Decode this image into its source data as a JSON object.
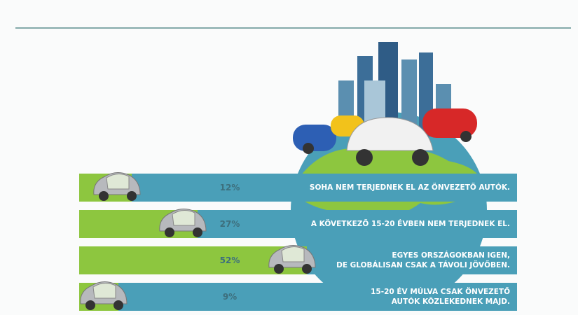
{
  "chart_data": {
    "type": "bar",
    "categories": [
      "SOHA NEM TERJEDNEK EL AZ ÖNVEZETŐ AUTÓK.",
      "A KÖVETKEZŐ 15-20 ÉVBEN NEM TERJEDNEK EL.",
      "EGYES ORSZÁGOKBAN IGEN,\nDE GLOBÁLISAN CSAK A TÁVOLI JÖVŐBEN.",
      "15-20 ÉV MÚLVA CSAK ÖNVEZETŐ\nAUTÓK KÖZLEKEDNEK MAJD."
    ],
    "values": [
      12,
      27,
      52,
      9
    ],
    "value_labels": [
      "12%",
      "27%",
      "52%",
      "9%"
    ],
    "xlim": [
      0,
      100
    ],
    "color": "#8dc63f",
    "track_color": "#4a9fb8"
  }
}
